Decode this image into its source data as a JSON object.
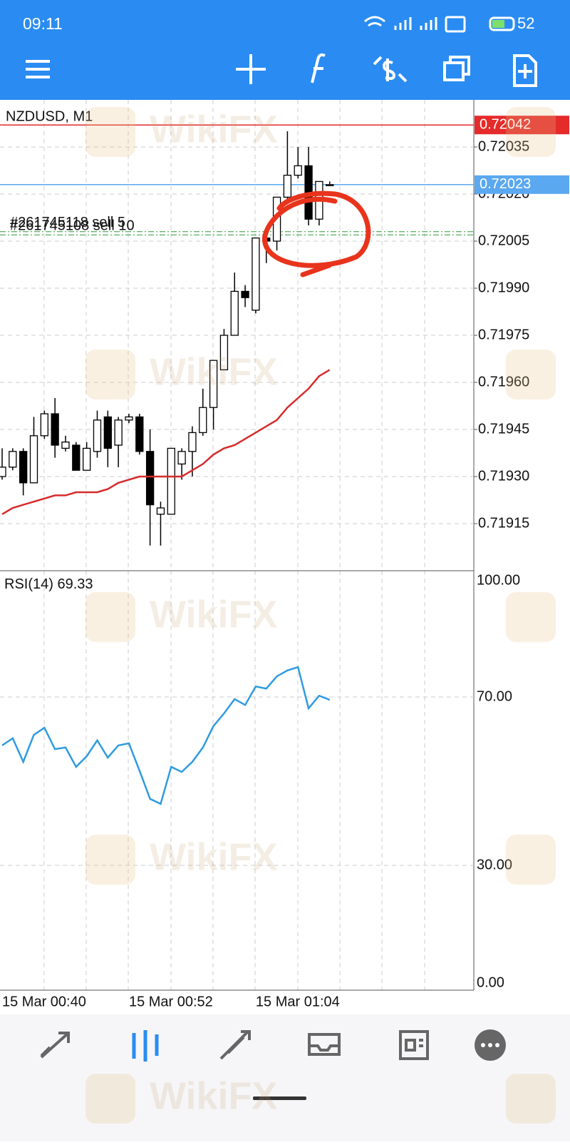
{
  "status_bar": {
    "time": "09:11",
    "battery": "52"
  },
  "watermark": "WikiFX",
  "chart_data": [
    {
      "type": "candlestick",
      "title": "NZDUSD, M1",
      "categories": [
        "15 Mar 00:40",
        null,
        null,
        null,
        null,
        null,
        null,
        null,
        null,
        null,
        null,
        null,
        "15 Mar 00:52",
        null,
        null,
        null,
        null,
        null,
        null,
        null,
        null,
        null,
        null,
        null,
        "15 Mar 01:04",
        null,
        null,
        null,
        null,
        null,
        null,
        null
      ],
      "open": [
        0.7193,
        0.71933,
        0.71938,
        0.71928,
        0.71943,
        0.7195,
        0.71939,
        0.7194,
        0.71932,
        0.71938,
        0.71949,
        0.7194,
        0.71948,
        0.71949,
        0.71938,
        0.71918,
        0.71918,
        0.71934,
        0.71938,
        0.71944,
        0.71952,
        0.71964,
        0.71975,
        0.71989,
        0.71983,
        0.72006,
        0.72005,
        0.72019,
        0.72026,
        0.72029,
        0.72012,
        0.72023
      ],
      "high": [
        0.71939,
        0.71939,
        0.71939,
        0.71949,
        0.71951,
        0.71955,
        0.71943,
        0.71941,
        0.71941,
        0.71951,
        0.71951,
        0.71949,
        0.7195,
        0.7195,
        0.71945,
        0.71922,
        0.71939,
        0.71939,
        0.71946,
        0.71958,
        0.71967,
        0.71977,
        0.71995,
        0.71991,
        0.72006,
        0.72007,
        0.72019,
        0.7204,
        0.72035,
        0.72035,
        0.72024,
        0.72024
      ],
      "low": [
        0.71929,
        0.71932,
        0.71924,
        0.71928,
        0.71942,
        0.71936,
        0.71938,
        0.71932,
        0.71932,
        0.71936,
        0.71933,
        0.71933,
        0.71947,
        0.71937,
        0.71908,
        0.71908,
        0.71918,
        0.71929,
        0.7193,
        0.71943,
        0.71945,
        0.71964,
        0.71975,
        0.71984,
        0.71982,
        0.71998,
        0.72002,
        0.72018,
        0.72025,
        0.7201,
        0.7201,
        0.72023
      ],
      "close": [
        0.71933,
        0.71938,
        0.71928,
        0.71943,
        0.7195,
        0.7194,
        0.71941,
        0.71932,
        0.71939,
        0.71948,
        0.71939,
        0.71948,
        0.71949,
        0.71938,
        0.71921,
        0.7192,
        0.71939,
        0.71938,
        0.71944,
        0.71952,
        0.71967,
        0.71975,
        0.71989,
        0.71987,
        0.72006,
        0.72005,
        0.72019,
        0.72026,
        0.72029,
        0.72012,
        0.72024,
        0.72023
      ],
      "ma": {
        "color": "#d62b2b",
        "values": [
          0.71918,
          0.7192,
          0.71921,
          0.71922,
          0.71923,
          0.71924,
          0.71924,
          0.71925,
          0.71925,
          0.71925,
          0.71926,
          0.71928,
          0.71929,
          0.7193,
          0.7193,
          0.7193,
          0.7193,
          0.7193,
          0.71932,
          0.71934,
          0.71937,
          0.71939,
          0.7194,
          0.71942,
          0.71944,
          0.71946,
          0.71948,
          0.71952,
          0.71955,
          0.71958,
          0.71962,
          0.71964
        ]
      },
      "bid": {
        "value": 0.72042,
        "color": "#e52a2a"
      },
      "ask": {
        "value": 0.72023,
        "color": "#5aa8f0"
      },
      "orders": [
        {
          "label": "#261745118 sell 5",
          "price": 0.72008
        },
        {
          "label": "#261745108 sell 10",
          "price": 0.72007
        }
      ],
      "ylim": [
        0.719,
        0.7205
      ],
      "yticks": [
        0.72035,
        {
          "value": 0.7202,
          "label": "0.72020"
        },
        0.72005,
        {
          "value": 0.7199,
          "label": "0.71990"
        },
        0.71975,
        {
          "value": 0.7196,
          "label": "0.71960"
        },
        0.71945,
        {
          "value": 0.7193,
          "label": "0.71930"
        },
        0.71915
      ],
      "grid": true
    },
    {
      "type": "line",
      "title": "RSI(14)",
      "color": "#2f9be0",
      "values": [
        58.5,
        60.2,
        54.6,
        61.0,
        62.7,
        57.6,
        58.0,
        53.4,
        55.9,
        59.7,
        55.6,
        58.5,
        59.0,
        52.5,
        45.8,
        44.6,
        53.4,
        52.2,
        54.6,
        58.0,
        63.1,
        66.1,
        69.5,
        68.1,
        72.5,
        72.0,
        74.9,
        76.3,
        77.1,
        67.3,
        70.3,
        69.33
      ],
      "ylim": [
        0,
        100
      ],
      "yticks": [
        {
          "value": 100,
          "label": "100.00"
        },
        {
          "value": 70,
          "label": "70.00"
        },
        {
          "value": 30,
          "label": "30.00"
        },
        {
          "value": 0,
          "label": "0.00"
        }
      ],
      "grid": true
    }
  ]
}
